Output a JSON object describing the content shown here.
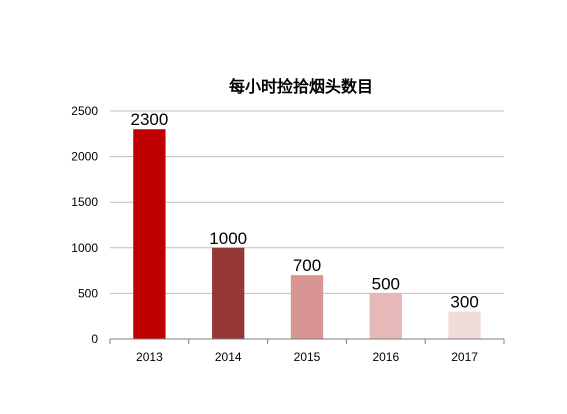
{
  "chart_data": {
    "type": "bar",
    "title": "每小时捡拾烟头数目",
    "categories": [
      "2013",
      "2014",
      "2015",
      "2016",
      "2017"
    ],
    "values": [
      2300,
      1000,
      700,
      500,
      300
    ],
    "data_labels": [
      "2300",
      "1000",
      "700",
      "500",
      "300"
    ],
    "bar_colors": [
      "#c00000",
      "#953735",
      "#d99594",
      "#e6b9b8",
      "#f2dcdb"
    ],
    "ylim": [
      0,
      2500
    ],
    "yticks": [
      0,
      500,
      1000,
      1500,
      2000,
      2500
    ],
    "xlabel": "",
    "ylabel": "",
    "grid": true,
    "legend": "none"
  }
}
